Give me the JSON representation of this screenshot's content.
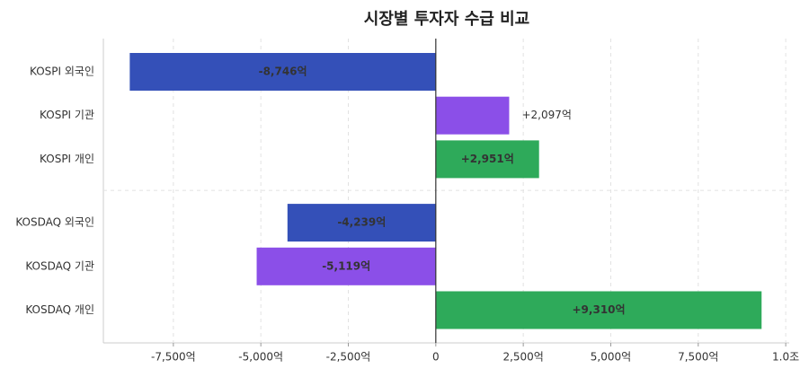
{
  "chart_data": {
    "type": "hbar",
    "title": "시장별 투자자 수급 비교",
    "categories": [
      "KOSPI 외국인",
      "KOSPI 기관",
      "KOSPI 개인",
      "KOSDAQ 외국인",
      "KOSDAQ 기관",
      "KOSDAQ 개인"
    ],
    "values": [
      -8746,
      2097,
      2951,
      -4239,
      -5119,
      9310
    ],
    "value_labels": [
      "-8,746억",
      "+2,097억",
      "+2,951억",
      "-4,239억",
      "-5,119억",
      "+9,310억"
    ],
    "colors": [
      "#3450b8",
      "#8b4fe8",
      "#2eaa5a",
      "#3450b8",
      "#8b4fe8",
      "#2eaa5a"
    ],
    "xlim": [
      -9500,
      10100
    ],
    "xticks": [
      {
        "value": -7500,
        "label": "-7,500억"
      },
      {
        "value": -5000,
        "label": "-5,000억"
      },
      {
        "value": -2500,
        "label": "-2,500억"
      },
      0,
      {
        "value": 2500,
        "label": "2,500억"
      },
      {
        "value": 5000,
        "label": "5,000억"
      },
      {
        "value": 7500,
        "label": "7,500억"
      },
      {
        "value": 10000,
        "label": "1.0조"
      }
    ],
    "grid": true
  }
}
